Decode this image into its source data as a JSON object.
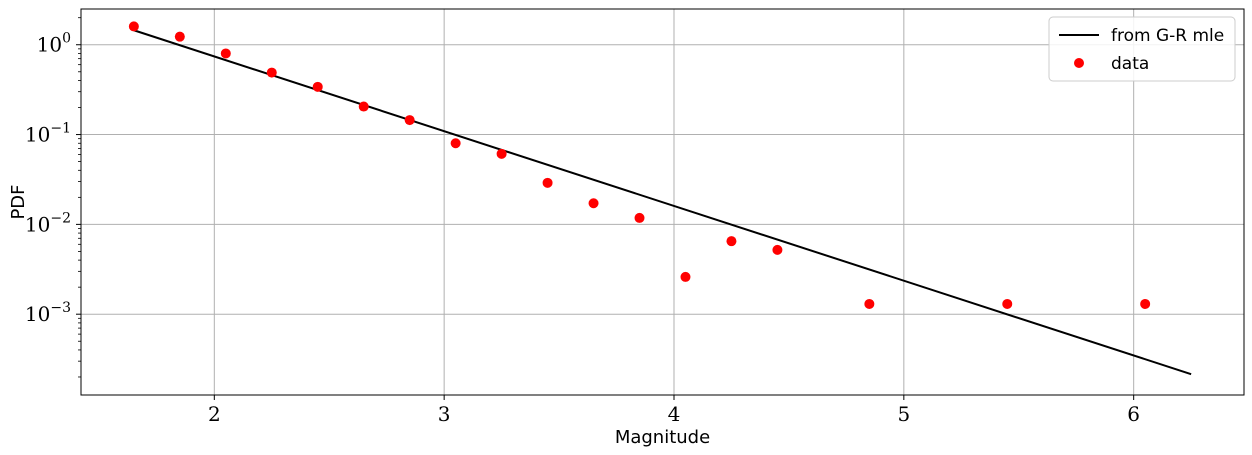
{
  "chart_data": {
    "type": "scatter",
    "xlabel": "Magnitude",
    "ylabel": "PDF",
    "x_scale": "linear",
    "y_scale": "log",
    "xlim": [
      1.42,
      6.48
    ],
    "ylim": [
      0.000126,
      2.5
    ],
    "x_ticks": [
      2,
      3,
      4,
      5,
      6
    ],
    "x_tick_labels": [
      "2",
      "3",
      "4",
      "5",
      "6"
    ],
    "y_ticks": [
      1,
      0.1,
      0.01,
      0.001
    ],
    "y_tick_labels": [
      {
        "base": "10",
        "exp": "0"
      },
      {
        "base": "10",
        "exp": "−1"
      },
      {
        "base": "10",
        "exp": "−2"
      },
      {
        "base": "10",
        "exp": "−3"
      }
    ],
    "grid": true,
    "legend_position": "top-right",
    "series": [
      {
        "name": "from G-R mle",
        "kind": "line",
        "color": "#000000",
        "x": [
          1.65,
          6.25
        ],
        "y": [
          1.45,
          0.000215
        ]
      },
      {
        "name": "data",
        "kind": "markers",
        "color": "#ff0000",
        "x": [
          1.65,
          1.85,
          2.05,
          2.25,
          2.45,
          2.65,
          2.85,
          3.05,
          3.25,
          3.45,
          3.65,
          3.85,
          4.05,
          4.25,
          4.45,
          4.85,
          5.45,
          6.05
        ],
        "y": [
          1.6,
          1.23,
          0.8,
          0.49,
          0.34,
          0.205,
          0.145,
          0.08,
          0.061,
          0.029,
          0.0172,
          0.0118,
          0.0026,
          0.0065,
          0.0052,
          0.0013,
          0.0013,
          0.0013
        ]
      }
    ]
  }
}
